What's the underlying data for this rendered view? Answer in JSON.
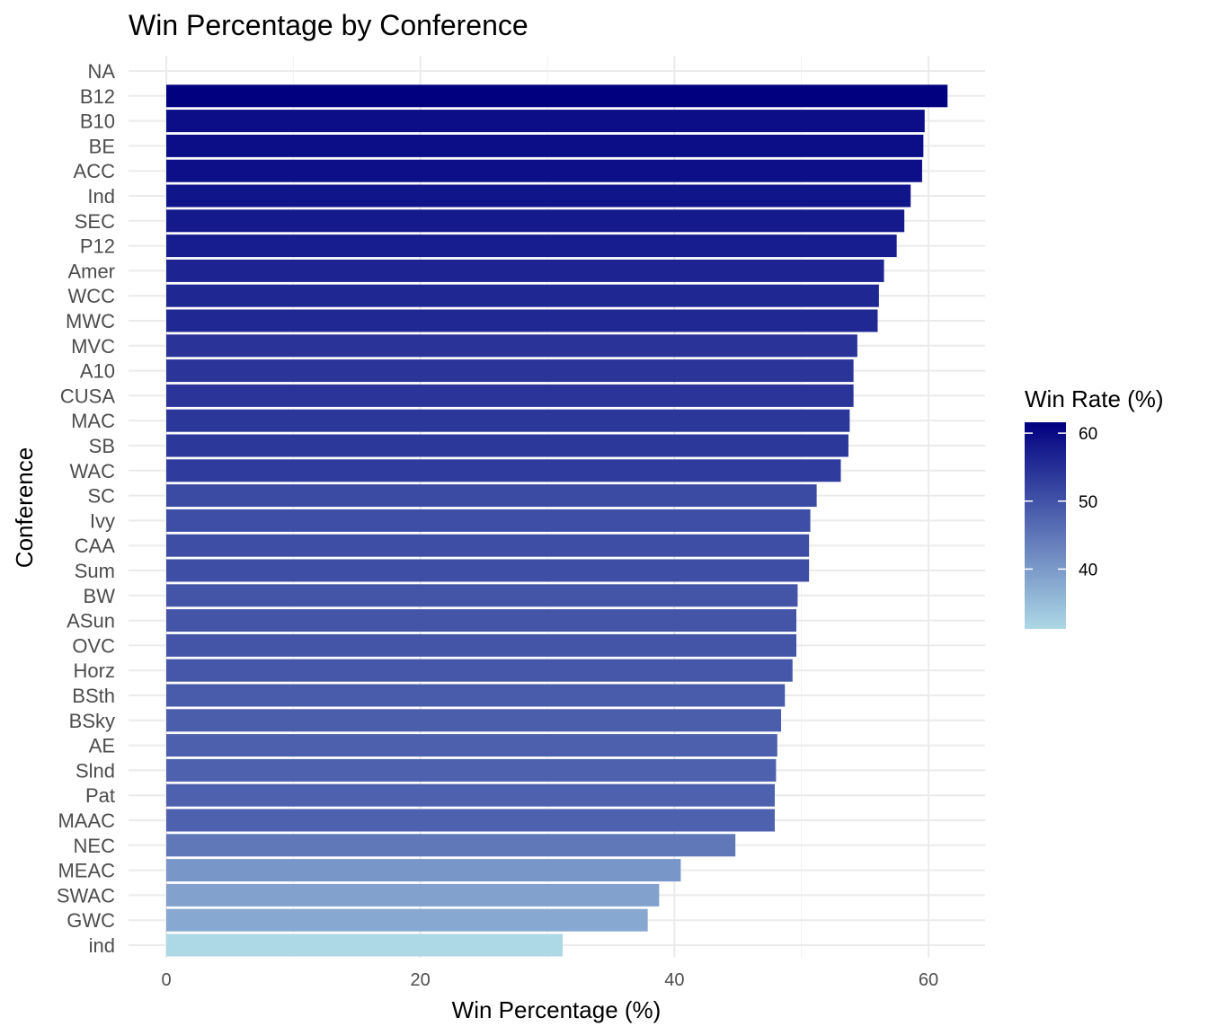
{
  "chart_data": {
    "type": "bar",
    "orientation": "horizontal",
    "title": "Win Percentage by Conference",
    "xlabel": "Win Percentage (%)",
    "ylabel": "Conference",
    "xlim": [
      0,
      64.5
    ],
    "xticks": [
      0,
      20,
      40,
      60
    ],
    "grid": true,
    "legend": {
      "title": "Win Rate (%)",
      "placement": "right",
      "type": "gradient",
      "range": [
        31.2,
        61.6
      ],
      "ticks": [
        40,
        50,
        60
      ],
      "low_color": "#add8e6",
      "high_color": "#000080"
    },
    "categories": [
      "NA",
      "B12",
      "B10",
      "BE",
      "ACC",
      "Ind",
      "SEC",
      "P12",
      "Amer",
      "WCC",
      "MWC",
      "MVC",
      "A10",
      "CUSA",
      "MAC",
      "SB",
      "WAC",
      "SC",
      "Ivy",
      "CAA",
      "Sum",
      "BW",
      "ASun",
      "OVC",
      "Horz",
      "BSth",
      "BSky",
      "AE",
      "Slnd",
      "Pat",
      "MAAC",
      "NEC",
      "MEAC",
      "SWAC",
      "GWC",
      "ind"
    ],
    "values": [
      null,
      61.5,
      59.7,
      59.6,
      59.5,
      58.6,
      58.1,
      57.5,
      56.5,
      56.1,
      56.0,
      54.4,
      54.1,
      54.1,
      53.8,
      53.7,
      53.1,
      51.2,
      50.7,
      50.6,
      50.6,
      49.7,
      49.6,
      49.6,
      49.3,
      48.7,
      48.4,
      48.1,
      48.0,
      47.9,
      47.9,
      44.8,
      40.5,
      38.8,
      37.9,
      31.2
    ]
  }
}
